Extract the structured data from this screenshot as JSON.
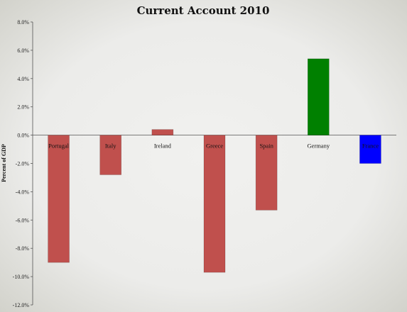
{
  "chart_data": {
    "type": "bar",
    "title": "Current Account 2010",
    "xlabel": "",
    "ylabel": "Percent of GDP",
    "categories": [
      "Portugal",
      "Italy",
      "Ireland",
      "Greece",
      "Spain",
      "Germany",
      "France"
    ],
    "values": [
      -9.0,
      -2.8,
      0.4,
      -9.7,
      -5.3,
      5.4,
      -2.0
    ],
    "ylim": [
      -12.0,
      8.0
    ],
    "yticks": [
      "8.0%",
      "6.0%",
      "4.0%",
      "2.0%",
      "0.0%",
      "-2.0%",
      "-4.0%",
      "-6.0%",
      "-8.0%",
      "-10.0%",
      "-12.0%"
    ],
    "ytick_values": [
      8,
      6,
      4,
      2,
      0,
      -2,
      -4,
      -6,
      -8,
      -10,
      -12
    ],
    "grid": false,
    "legend": "none",
    "colors": [
      "#c0504d",
      "#c0504d",
      "#c0504d",
      "#c0504d",
      "#c0504d",
      "#008000",
      "#0000ff"
    ]
  }
}
